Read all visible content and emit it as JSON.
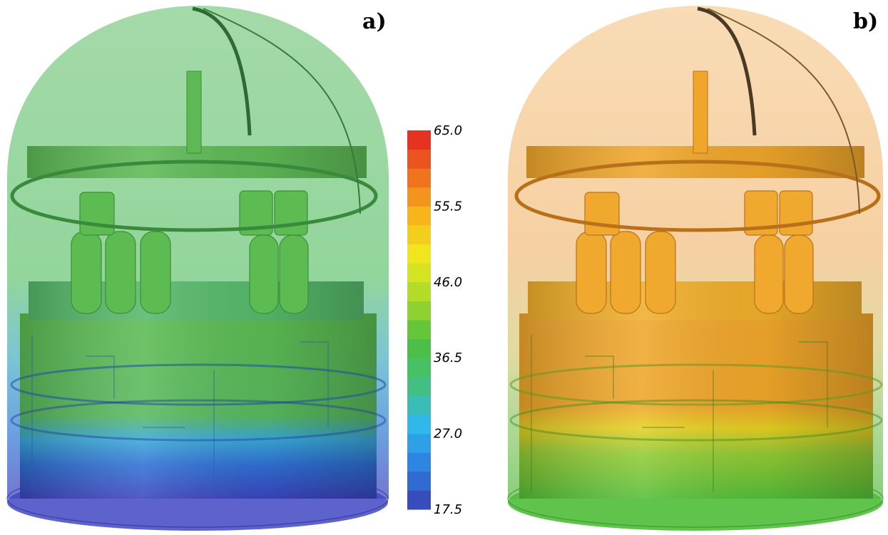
{
  "panels": [
    {
      "label": "a)"
    },
    {
      "label": "b)"
    }
  ],
  "colorbar": {
    "min": 17.5,
    "max": 65.0,
    "steps": 20,
    "stops": [
      "#3a3fb0",
      "#2c7fe0",
      "#30b8ee",
      "#45c07a",
      "#4cbf3e",
      "#a6d92a",
      "#f0ea1e",
      "#f6b51a",
      "#ef6a1e",
      "#e42320"
    ],
    "tick_labels": [
      "65.0",
      "55.5",
      "46.0",
      "36.5",
      "27.0",
      "17.5"
    ]
  },
  "colors": {
    "panel_a_dome_top": "#7ec98a",
    "panel_a_machine": "#5bbb56",
    "panel_a_lower": "#3a7fd6",
    "panel_a_base": "#4a4fc8",
    "panel_b_dome_top": "#f6cf9a",
    "panel_b_machine": "#f0a72a",
    "panel_b_lower": "#7cc43c",
    "panel_b_base": "#52bf3a"
  }
}
